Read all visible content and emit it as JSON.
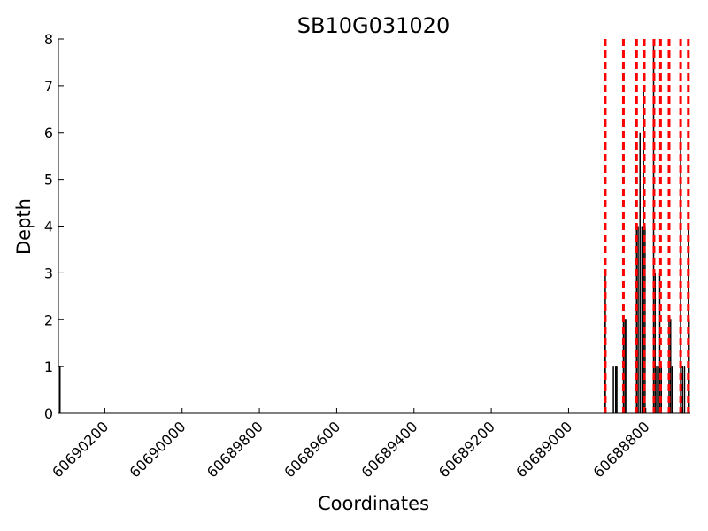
{
  "chart_data": {
    "type": "bar",
    "title": "SB10G031020",
    "xlabel": "Coordinates",
    "ylabel": "Depth",
    "x_reversed": true,
    "xlim": [
      60690320,
      60688685
    ],
    "ylim": [
      0,
      8
    ],
    "grid": false,
    "y_ticks": [
      0,
      1,
      2,
      3,
      4,
      5,
      6,
      7,
      8
    ],
    "x_ticks": [
      60690200,
      60690000,
      60689800,
      60689600,
      60689400,
      60689200,
      60689000,
      60688800
    ],
    "x_tick_labels": [
      "60690200",
      "60690000",
      "60689800",
      "60689600",
      "60689400",
      "60689200",
      "60689000",
      "60688800"
    ],
    "bar_color": "#000000",
    "marker_color": "#ff0000",
    "bars": [
      {
        "x": 60690316,
        "depth": 1
      },
      {
        "x": 60688906,
        "depth": 2
      },
      {
        "x": 60688905,
        "depth": 3
      },
      {
        "x": 60688884,
        "depth": 1
      },
      {
        "x": 60688878,
        "depth": 1
      },
      {
        "x": 60688875,
        "depth": 1
      },
      {
        "x": 60688858,
        "depth": 2
      },
      {
        "x": 60688854,
        "depth": 2
      },
      {
        "x": 60688850,
        "depth": 2
      },
      {
        "x": 60688824,
        "depth": 4
      },
      {
        "x": 60688820,
        "depth": 4
      },
      {
        "x": 60688815,
        "depth": 6
      },
      {
        "x": 60688810,
        "depth": 4
      },
      {
        "x": 60688806,
        "depth": 7
      },
      {
        "x": 60688802,
        "depth": 4
      },
      {
        "x": 60688780,
        "depth": 8
      },
      {
        "x": 60688776,
        "depth": 3
      },
      {
        "x": 60688772,
        "depth": 1
      },
      {
        "x": 60688768,
        "depth": 1
      },
      {
        "x": 60688764,
        "depth": 3
      },
      {
        "x": 60688760,
        "depth": 1
      },
      {
        "x": 60688740,
        "depth": 2
      },
      {
        "x": 60688736,
        "depth": 2
      },
      {
        "x": 60688732,
        "depth": 1
      },
      {
        "x": 60688710,
        "depth": 6
      },
      {
        "x": 60688705,
        "depth": 1
      },
      {
        "x": 60688700,
        "depth": 1
      },
      {
        "x": 60688690,
        "depth": 4
      },
      {
        "x": 60688688,
        "depth": 2
      }
    ],
    "reference_lines": [
      60688905,
      60688858,
      60688824,
      60688804,
      60688779,
      60688762,
      60688740,
      60688710,
      60688690
    ]
  }
}
